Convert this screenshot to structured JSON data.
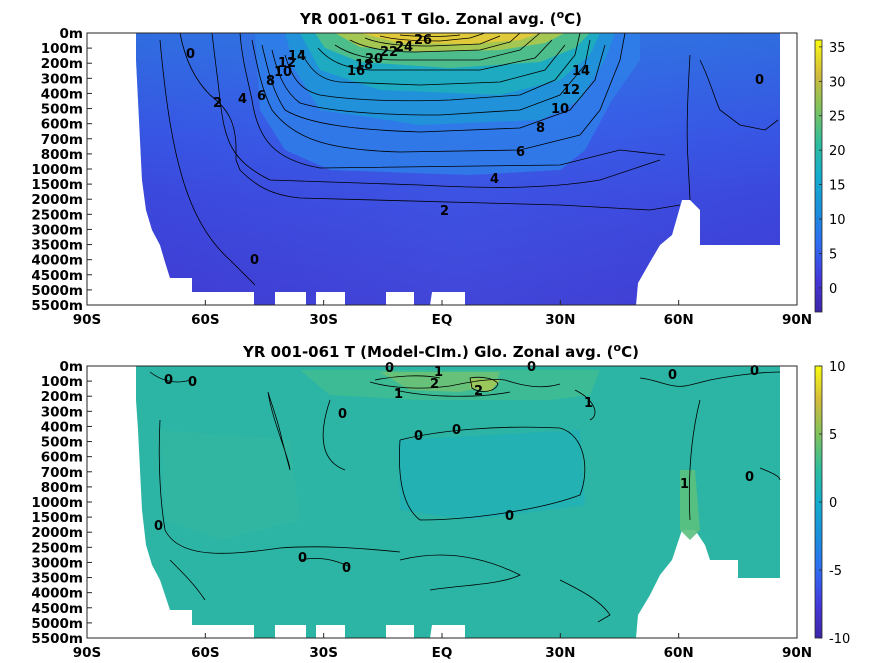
{
  "chart_data": [
    {
      "type": "heatmap",
      "title": "YR 001-061 T Glo. Zonal avg. (",
      "title_unit": "o",
      "title_unit_suffix": "C)",
      "x_ticks": [
        "90S",
        "60S",
        "30S",
        "EQ",
        "30N",
        "60N",
        "90N"
      ],
      "y_ticks": [
        "0m",
        "100m",
        "200m",
        "300m",
        "400m",
        "500m",
        "600m",
        "700m",
        "800m",
        "1000m",
        "1500m",
        "2000m",
        "2500m",
        "3000m",
        "3500m",
        "4000m",
        "4500m",
        "5000m",
        "5500m"
      ],
      "colorbar": {
        "ticks": [
          "0",
          "5",
          "10",
          "15",
          "20",
          "25",
          "30",
          "35"
        ],
        "range": [
          -3.5,
          36
        ],
        "colormap": "parula"
      },
      "contour_labels": [
        "0",
        "2",
        "4",
        "6",
        "8",
        "10",
        "12",
        "14",
        "16",
        "18",
        "20",
        "22",
        "24",
        "26",
        "0",
        "2",
        "4",
        "6",
        "8",
        "10",
        "12",
        "14",
        "0"
      ],
      "grid": false
    },
    {
      "type": "heatmap",
      "title": "YR 001-061 T (Model-Clm.) Glo. Zonal avg. (",
      "title_unit": "o",
      "title_unit_suffix": "C)",
      "x_ticks": [
        "90S",
        "60S",
        "30S",
        "EQ",
        "30N",
        "60N",
        "90N"
      ],
      "y_ticks": [
        "0m",
        "100m",
        "200m",
        "300m",
        "400m",
        "500m",
        "600m",
        "700m",
        "800m",
        "1000m",
        "1500m",
        "2000m",
        "2500m",
        "3000m",
        "3500m",
        "4000m",
        "4500m",
        "5000m",
        "5500m"
      ],
      "colorbar": {
        "ticks": [
          "-10",
          "-5",
          "0",
          "5",
          "10"
        ],
        "range": [
          -10,
          10
        ],
        "colormap": "parula"
      },
      "contour_labels": [
        "0",
        "0",
        "1",
        "2",
        "0",
        "1",
        "1",
        "2",
        "0",
        "0",
        "0",
        "1",
        "0",
        "0",
        "0",
        "0",
        "0",
        "0",
        "0",
        "0"
      ],
      "grid": false
    }
  ],
  "colors": {
    "parula_low": "#3e26a8",
    "parula_mid": "#1fb3b5",
    "parula_high": "#f9fb0e",
    "diff_background": "#2db5a3"
  }
}
